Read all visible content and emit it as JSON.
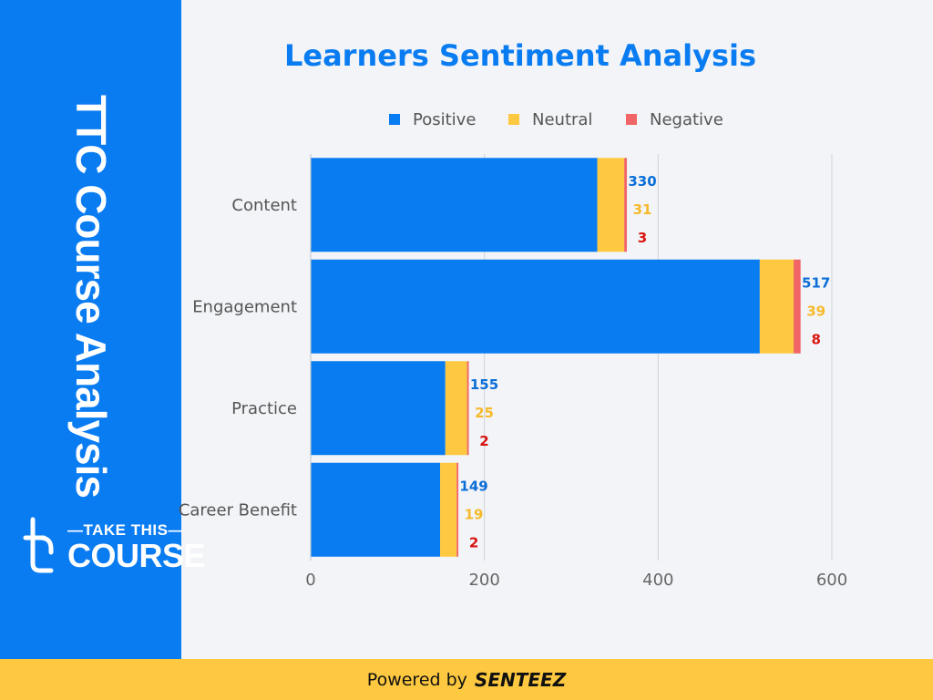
{
  "sidebar": {
    "title": "TTC Course Analysis",
    "logo_line1": "—TAKE THIS—",
    "logo_line2": "COURSE"
  },
  "footer": {
    "text": "Powered by",
    "brand": "SENTEEZ"
  },
  "colors": {
    "positive": "#0a7cf2",
    "neutral": "#fec940",
    "negative": "#f26566",
    "positive_label": "#0a6ed8",
    "neutral_label": "#f6b92a",
    "negative_label": "#d9130f",
    "title": "#0a7cf2"
  },
  "chart_data": {
    "type": "bar",
    "orientation": "horizontal",
    "stacked": true,
    "title": "Learners Sentiment Analysis",
    "categories": [
      "Content",
      "Engagement",
      "Practice",
      "Career Benefit"
    ],
    "series": [
      {
        "name": "Positive",
        "values": [
          330,
          517,
          155,
          149
        ]
      },
      {
        "name": "Neutral",
        "values": [
          31,
          39,
          25,
          19
        ]
      },
      {
        "name": "Negative",
        "values": [
          3,
          8,
          2,
          2
        ]
      }
    ],
    "xlim": [
      0,
      600
    ],
    "x_ticks": [
      "0",
      "200",
      "400",
      "600"
    ],
    "grid": true,
    "legend_position": "top"
  }
}
